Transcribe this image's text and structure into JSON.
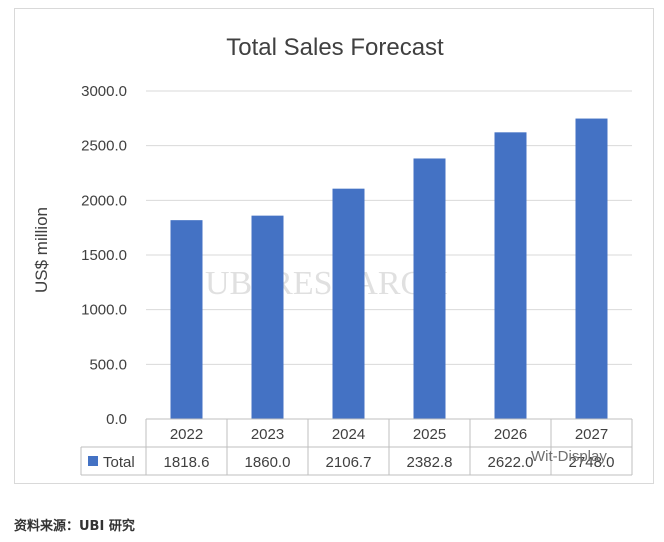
{
  "chart_data": {
    "type": "bar",
    "title": "Total Sales Forecast",
    "xlabel": "",
    "ylabel": "US$ million",
    "categories": [
      "2022",
      "2023",
      "2024",
      "2025",
      "2026",
      "2027"
    ],
    "series": [
      {
        "name": "Total",
        "values": [
          1818.6,
          1860.0,
          2106.7,
          2382.8,
          2622.0,
          2748.0
        ],
        "color": "#4472c4"
      }
    ],
    "table_values": [
      "1818.6",
      "1860.0",
      "2106.7",
      "2382.8",
      "2622.0",
      "2748.0"
    ],
    "ylim": [
      0,
      3000
    ],
    "yticks": [
      "0.0",
      "500.0",
      "1000.0",
      "1500.0",
      "2000.0",
      "2500.0",
      "3000.0"
    ],
    "grid": true,
    "legend": "data-table"
  },
  "watermarks": {
    "logo": "UBi RESEARCH",
    "corner": "Wit-Display"
  },
  "source_caption": "资料来源：UBI 研究"
}
